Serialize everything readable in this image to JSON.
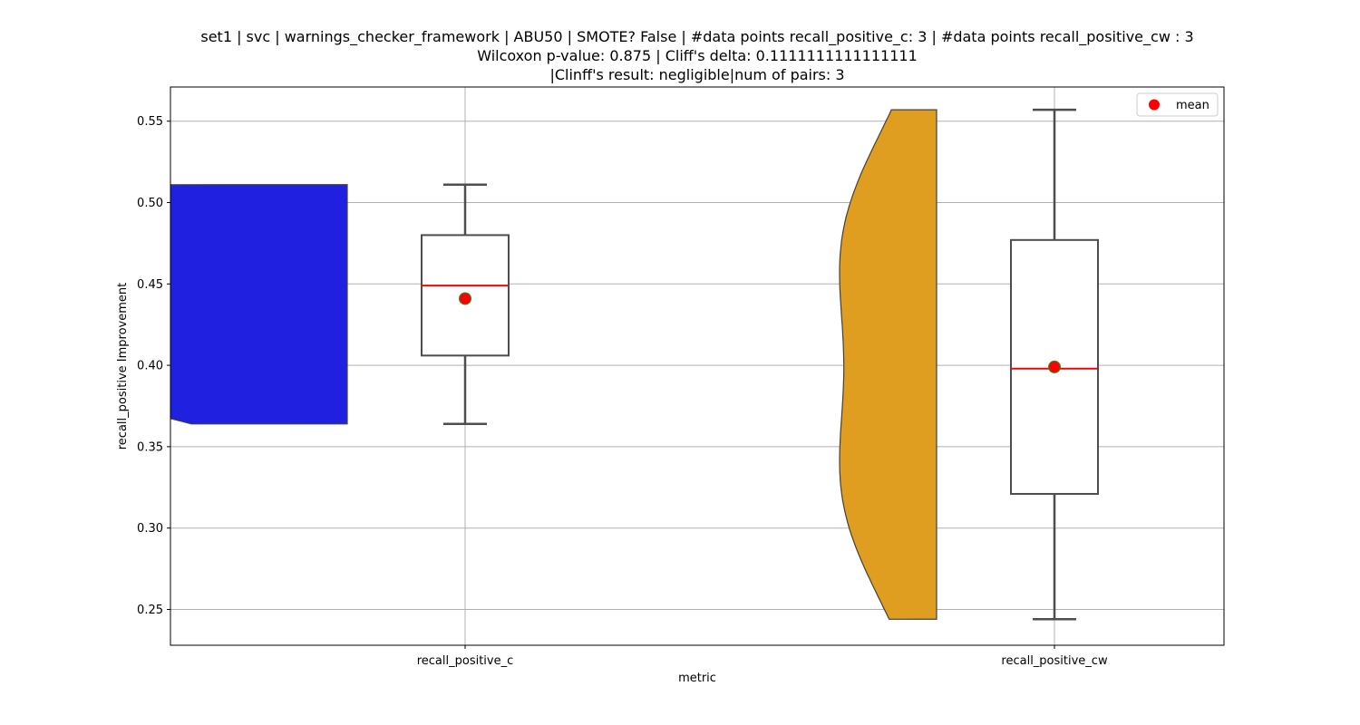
{
  "chart_data": {
    "type": "violin+box",
    "title_lines": [
      "set1 | svc | warnings_checker_framework | ABU50 | SMOTE? False | #data points recall_positive_c: 3 | #data points recall_positive_cw : 3",
      "Wilcoxon p-value: 0.875 | Cliff's delta: 0.1111111111111111",
      "|Clinff's result: negligible|num of pairs: 3"
    ],
    "xlabel": "metric",
    "ylabel": "recall_positive Improvement",
    "categories": [
      "recall_positive_c",
      "recall_positive_cw"
    ],
    "ylim": [
      0.228,
      0.571
    ],
    "yticks": [
      0.25,
      0.3,
      0.35,
      0.4,
      0.45,
      0.5,
      0.55
    ],
    "ytick_labels": [
      "0.25",
      "0.30",
      "0.35",
      "0.40",
      "0.45",
      "0.50",
      "0.55"
    ],
    "grid": true,
    "legend": {
      "position": "top-right",
      "entries": [
        {
          "label": "mean",
          "marker": "circle",
          "color": "#ff0000"
        }
      ]
    },
    "series": [
      {
        "name": "recall_positive_c",
        "violin_color": "#2020e0",
        "violin_range": [
          0.364,
          0.511
        ],
        "violin_peaks": [
          0.405,
          0.479
        ],
        "box": {
          "min": 0.364,
          "q1": 0.406,
          "median": 0.449,
          "q3": 0.48,
          "max": 0.511,
          "mean": 0.441
        }
      },
      {
        "name": "recall_positive_cw",
        "violin_color": "#e09e20",
        "violin_range": [
          0.244,
          0.557
        ],
        "violin_peaks": [
          0.321,
          0.477
        ],
        "box": {
          "min": 0.244,
          "q1": 0.321,
          "median": 0.398,
          "q3": 0.477,
          "max": 0.557,
          "mean": 0.399
        }
      }
    ],
    "colors": {
      "median_line": "#ff0000",
      "mean_marker": "#ff0000",
      "mean_marker_edge": "#2e8b22",
      "box_edge": "#4d4d4d",
      "grid": "#b0b0b0"
    }
  }
}
